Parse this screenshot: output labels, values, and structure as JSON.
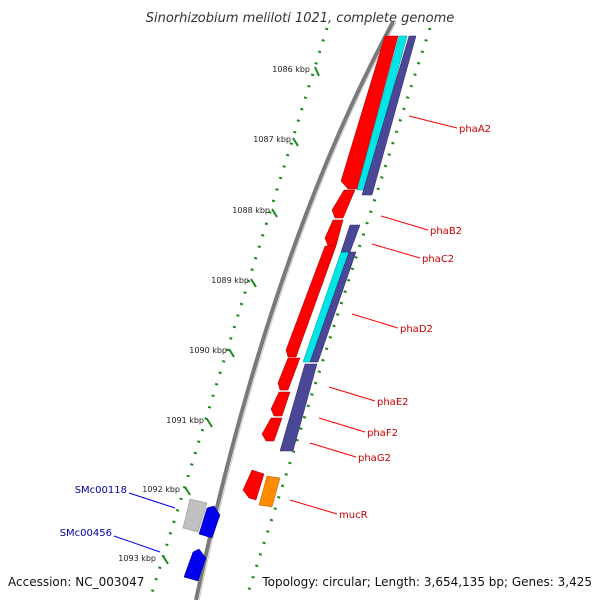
{
  "title": "Sinorhizobium meliloti 1021, complete genome",
  "footer": {
    "accession": "Accession: NC_003047",
    "summary": "Topology: circular; Length: 3,654,135 bp; Genes: 3,425"
  },
  "scale_labels": [
    "1086 kbp",
    "1087 kbp",
    "1088 kbp",
    "1089 kbp",
    "1090 kbp",
    "1091 kbp",
    "1092 kbp",
    "1093 kbp"
  ],
  "colors": {
    "backbone": "#888888",
    "tick": "#1a8a1a",
    "cds_red": "#ff0000",
    "cds_cyan": "#00e5e5",
    "cds_navy": "#4a4896",
    "cds_orange": "#ff8c00",
    "cds_blue": "#0000ee",
    "cds_gray": "#c0c0c0",
    "label_red": "#cc0000",
    "label_blue": "#0000aa"
  },
  "gene_labels": [
    {
      "name": "phaA2",
      "color": "red"
    },
    {
      "name": "phaB2",
      "color": "red"
    },
    {
      "name": "phaC2",
      "color": "red"
    },
    {
      "name": "phaD2",
      "color": "red"
    },
    {
      "name": "phaE2",
      "color": "red"
    },
    {
      "name": "phaF2",
      "color": "red"
    },
    {
      "name": "phaG2",
      "color": "red"
    },
    {
      "name": "mucR",
      "color": "red"
    },
    {
      "name": "SMc00118",
      "color": "blue"
    },
    {
      "name": "SMc00456",
      "color": "blue"
    }
  ]
}
